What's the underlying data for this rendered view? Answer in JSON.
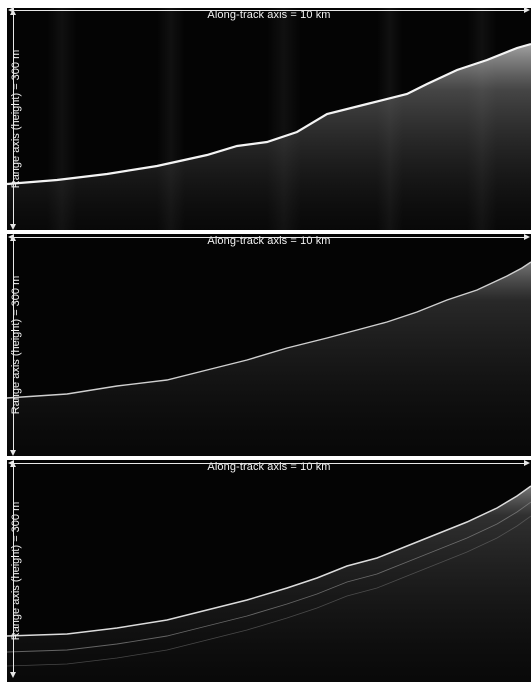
{
  "panels": [
    {
      "along_label": "Along-track axis = 10 km",
      "range_label": "Range axis (height) = 300 m",
      "style": "smooth"
    },
    {
      "along_label": "Along-track axis = 10 km",
      "range_label": "Range axis (height) = 300 m",
      "style": "grainy"
    },
    {
      "along_label": "Along-track axis = 10 km",
      "range_label": "Range axis (height) = 300 m",
      "style": "layered"
    }
  ]
}
